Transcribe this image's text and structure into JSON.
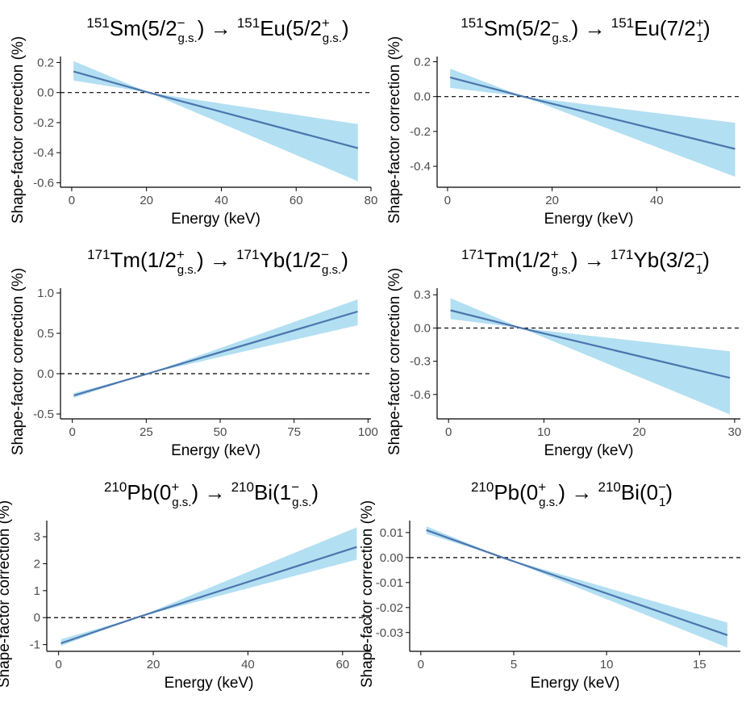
{
  "colors": {
    "band": "#b3dff2",
    "line": "#4a76ae",
    "zero_line": "#000000",
    "axis": "#000000",
    "tick_text": "#4d4d4d"
  },
  "chart_data": [
    {
      "type": "line",
      "title_parts": {
        "pa": "151",
        "na": "Sm",
        "sa": "5/2",
        "suba": "g.s.",
        "supa": "−",
        "pb": "151",
        "nb": "Eu",
        "sb": "5/2",
        "subb": "g.s.",
        "supb": "+"
      },
      "xlabel": "Energy (keV)",
      "ylabel": "Shape-factor correction (%)",
      "xlim": [
        -3,
        80
      ],
      "ylim": [
        -0.63,
        0.24
      ],
      "x_ticks": [
        0,
        20,
        40,
        60,
        80
      ],
      "y_ticks": [
        -0.6,
        -0.4,
        -0.2,
        0.0,
        0.2
      ],
      "y_tick_labels": [
        "-0.6",
        "-0.4",
        "-0.2",
        "0.0",
        "0.2"
      ],
      "zero_line": 0,
      "x": [
        0.5,
        20.6,
        76.5
      ],
      "y": [
        0.14,
        0.0,
        -0.37
      ],
      "lower": [
        0.08,
        0.0,
        -0.59
      ],
      "upper": [
        0.21,
        0.0,
        -0.21
      ]
    },
    {
      "type": "line",
      "title_parts": {
        "pa": "151",
        "na": "Sm",
        "sa": "5/2",
        "suba": "g.s.",
        "supa": "−",
        "pb": "151",
        "nb": "Eu",
        "sb": "7/2",
        "subb": "1",
        "supb": "+"
      },
      "xlabel": "Energy (keV)",
      "ylabel": "Shape-factor correction (%)",
      "xlim": [
        -2,
        56
      ],
      "ylim": [
        -0.52,
        0.23
      ],
      "x_ticks": [
        0,
        20,
        40
      ],
      "y_ticks": [
        -0.4,
        -0.2,
        0.0,
        0.2
      ],
      "y_tick_labels": [
        "-0.4",
        "-0.2",
        "0.0",
        "0.2"
      ],
      "zero_line": 0,
      "x": [
        0.5,
        14.5,
        55
      ],
      "y": [
        0.11,
        0.0,
        -0.3
      ],
      "lower": [
        0.05,
        0.0,
        -0.46
      ],
      "upper": [
        0.16,
        0.0,
        -0.15
      ]
    },
    {
      "type": "line",
      "title_parts": {
        "pa": "171",
        "na": "Tm",
        "sa": "1/2",
        "suba": "g.s.",
        "supa": "+",
        "pb": "171",
        "nb": "Yb",
        "sb": "1/2",
        "subb": "g.s.",
        "supb": "−"
      },
      "xlabel": "Energy (keV)",
      "ylabel": "Shape-factor correction (%)",
      "xlim": [
        -4,
        101
      ],
      "ylim": [
        -0.56,
        1.06
      ],
      "x_ticks": [
        0,
        25,
        50,
        75,
        100
      ],
      "y_ticks": [
        -0.5,
        0.0,
        0.5,
        1.0
      ],
      "y_tick_labels": [
        "-0.5",
        "0.0",
        "0.5",
        "1.0"
      ],
      "zero_line": 0,
      "x": [
        0.5,
        25.5,
        96.5
      ],
      "y": [
        -0.27,
        0.0,
        0.77
      ],
      "lower": [
        -0.3,
        0.0,
        0.6
      ],
      "upper": [
        -0.24,
        0.0,
        0.92
      ]
    },
    {
      "type": "line",
      "title_parts": {
        "pa": "171",
        "na": "Tm",
        "sa": "1/2",
        "suba": "g.s.",
        "supa": "+",
        "pb": "171",
        "nb": "Yb",
        "sb": "3/2",
        "subb": "1",
        "supb": "−"
      },
      "xlabel": "Energy (keV)",
      "ylabel": "Shape-factor correction (%)",
      "xlim": [
        -1.2,
        30.6
      ],
      "ylim": [
        -0.82,
        0.36
      ],
      "x_ticks": [
        0,
        10,
        20,
        30
      ],
      "y_ticks": [
        -0.6,
        -0.3,
        0.0,
        0.3
      ],
      "y_tick_labels": [
        "-0.6",
        "-0.3",
        "0.0",
        "0.3"
      ],
      "zero_line": 0,
      "x": [
        0.2,
        7.6,
        29.5
      ],
      "y": [
        0.16,
        0.0,
        -0.45
      ],
      "lower": [
        0.08,
        0.0,
        -0.78
      ],
      "upper": [
        0.27,
        0.0,
        -0.21
      ]
    },
    {
      "type": "line",
      "title_parts": {
        "pa": "210",
        "na": "Pb",
        "sa": "0",
        "suba": "g.s.",
        "supa": "+",
        "pb": "210",
        "nb": "Bi",
        "sb": "1",
        "subb": "g.s.",
        "supb": "−"
      },
      "xlabel": "Energy (keV)",
      "ylabel": "Shape-factor correction (%)",
      "xlim": [
        -2.5,
        66
      ],
      "ylim": [
        -1.25,
        3.6
      ],
      "x_ticks": [
        0,
        20,
        40,
        60
      ],
      "y_ticks": [
        -1,
        0,
        1,
        2,
        3
      ],
      "y_tick_labels": [
        "-1",
        "0",
        "1",
        "2",
        "3"
      ],
      "zero_line": 0,
      "x": [
        0.5,
        16.5,
        63
      ],
      "y": [
        -0.95,
        0.0,
        2.62
      ],
      "lower": [
        -1.05,
        0.0,
        2.15
      ],
      "upper": [
        -0.8,
        0.0,
        3.35
      ]
    },
    {
      "type": "line",
      "title_parts": {
        "pa": "210",
        "na": "Pb",
        "sa": "0",
        "suba": "g.s.",
        "supa": "+",
        "pb": "210",
        "nb": "Bi",
        "sb": "0",
        "subb": "1",
        "supb": "−"
      },
      "xlabel": "Energy (keV)",
      "ylabel": "Shape-factor correction (%)",
      "xlim": [
        -0.6,
        17.2
      ],
      "ylim": [
        -0.0375,
        0.0148
      ],
      "x_ticks": [
        0,
        5,
        10,
        15
      ],
      "y_ticks": [
        -0.03,
        -0.02,
        -0.01,
        0.0,
        0.01
      ],
      "y_tick_labels": [
        "-0.03",
        "-0.02",
        "-0.01",
        "0.00",
        "0.01"
      ],
      "zero_line": 0,
      "x": [
        0.3,
        4.4,
        16.5
      ],
      "y": [
        0.011,
        0.0,
        -0.031
      ],
      "lower": [
        0.0095,
        0.0,
        -0.036
      ],
      "upper": [
        0.0125,
        0.0,
        -0.026
      ]
    }
  ]
}
